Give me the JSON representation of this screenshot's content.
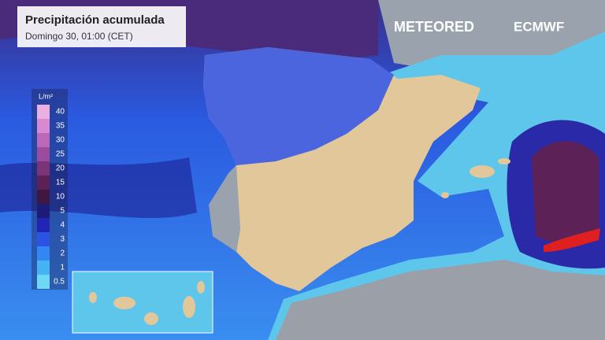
{
  "header": {
    "title": "Precipitación acumulada",
    "subtitle": "Domingo 30, 01:00 (CET)"
  },
  "legend": {
    "unit": "L/m²",
    "items": [
      {
        "value": 40,
        "color": "#eab0e0"
      },
      {
        "value": 35,
        "color": "#d78ad0"
      },
      {
        "value": 30,
        "color": "#bc68b8"
      },
      {
        "value": 25,
        "color": "#9c4c9c"
      },
      {
        "value": 20,
        "color": "#7c3478"
      },
      {
        "value": 15,
        "color": "#5c2258"
      },
      {
        "value": 10,
        "color": "#3e1840"
      },
      {
        "value": 5,
        "color": "#1c1c78"
      },
      {
        "value": 4,
        "color": "#2424b4"
      },
      {
        "value": 3,
        "color": "#2c54e4"
      },
      {
        "value": 2,
        "color": "#3486f2"
      },
      {
        "value": 1,
        "color": "#46b4f2"
      },
      {
        "value": 0.5,
        "color": "#6cd8f2"
      }
    ]
  },
  "logos": [
    "METEORED",
    "ECMWF"
  ]
}
